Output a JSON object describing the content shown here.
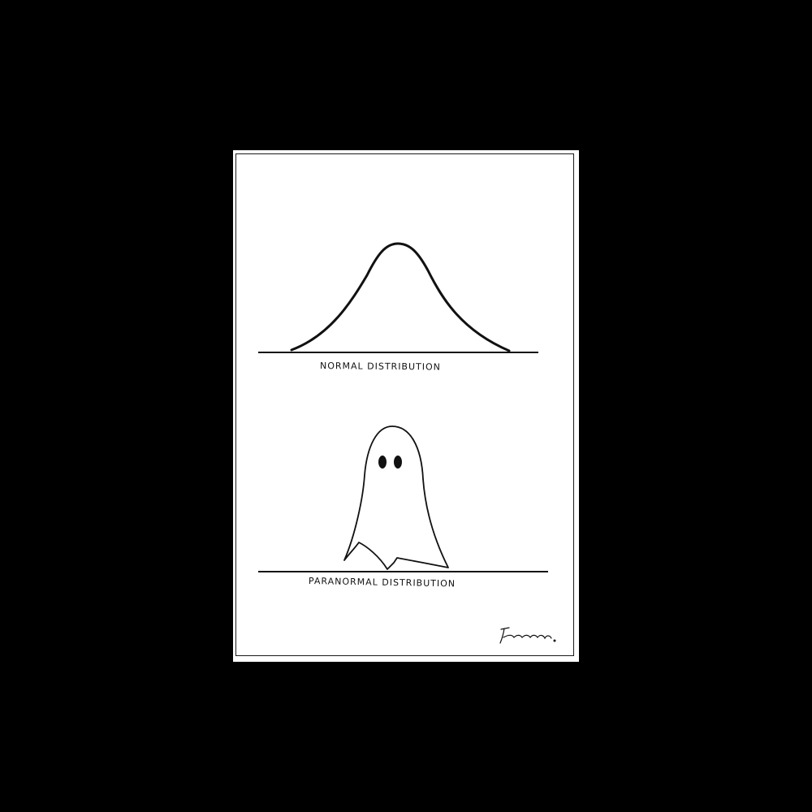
{
  "image": {
    "background_color": "#000000",
    "card_color": "#ffffff",
    "ink_color": "#111111"
  },
  "panels": [
    {
      "drawing": "bell-curve",
      "caption": "NORMAL DISTRIBUTION"
    },
    {
      "drawing": "ghost",
      "caption": "PARANORMAL DISTRIBUTION"
    }
  ],
  "signature": "Freeman."
}
